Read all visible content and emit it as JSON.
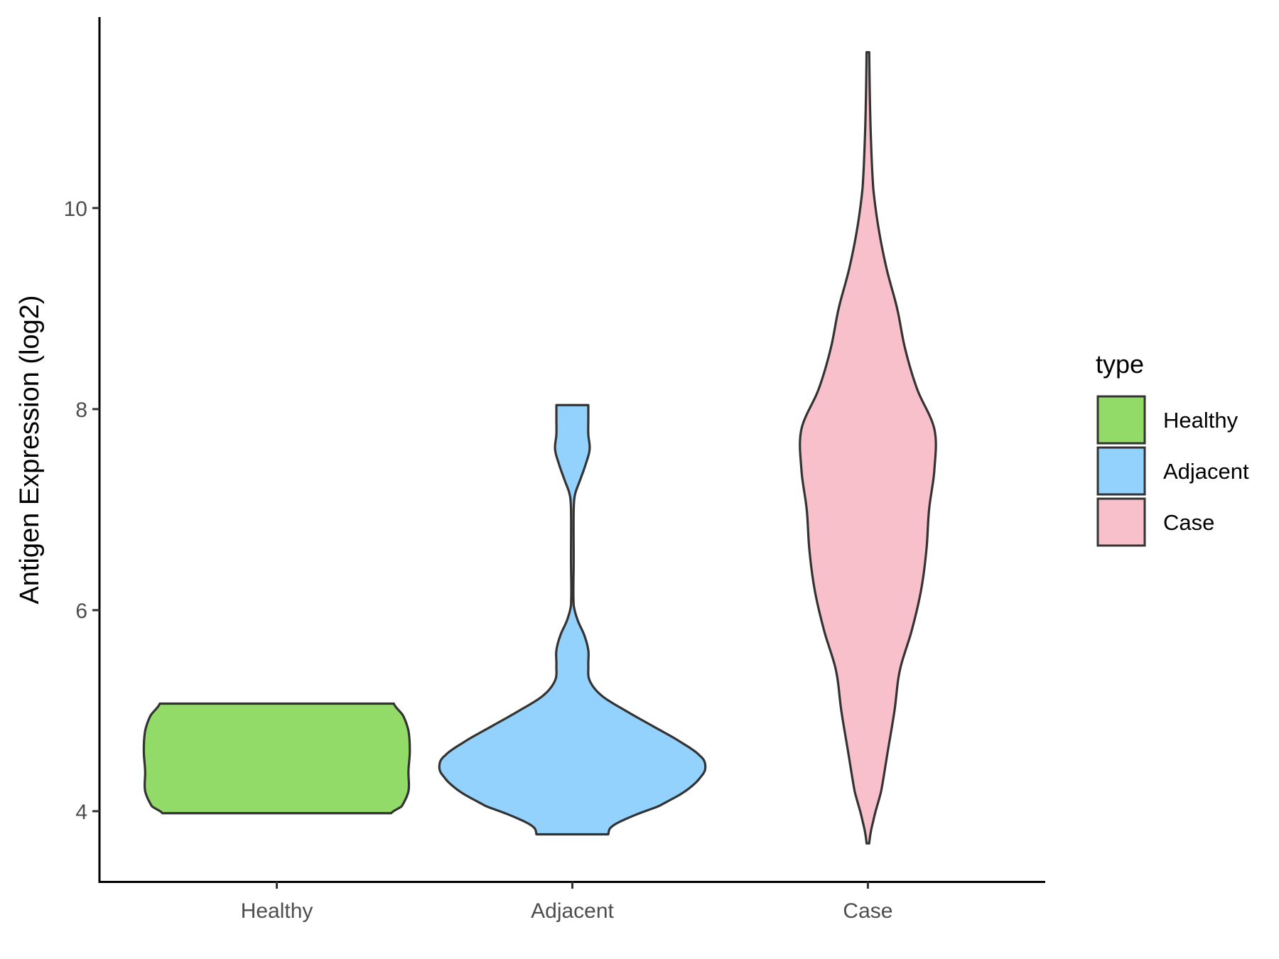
{
  "chart_data": {
    "type": "violin",
    "xlabel": "",
    "ylabel": "Antigen Expression (log2)",
    "ylim": [
      3.3,
      11.9
    ],
    "y_ticks": [
      4,
      6,
      8,
      10
    ],
    "categories": [
      "Healthy",
      "Adjacent",
      "Case"
    ],
    "grid": false,
    "legend": {
      "title": "type",
      "position": "right",
      "entries": [
        {
          "label": "Healthy",
          "color": "#93db69"
        },
        {
          "label": "Adjacent",
          "color": "#93d2fd"
        },
        {
          "label": "Case",
          "color": "#f7c0cb"
        }
      ]
    },
    "series": [
      {
        "category": "Healthy",
        "color": "#93db69",
        "min": 3.98,
        "max": 5.07,
        "density_profile": [
          [
            3.98,
            0.86
          ],
          [
            4.05,
            0.94
          ],
          [
            4.2,
            0.99
          ],
          [
            4.4,
            0.99
          ],
          [
            4.6,
            1.0
          ],
          [
            4.8,
            0.99
          ],
          [
            4.95,
            0.95
          ],
          [
            5.07,
            0.88
          ]
        ]
      },
      {
        "category": "Adjacent",
        "color": "#93d2fd",
        "min": 3.77,
        "max": 8.04,
        "density_profile": [
          [
            3.77,
            0.27
          ],
          [
            3.85,
            0.3
          ],
          [
            3.95,
            0.45
          ],
          [
            4.05,
            0.65
          ],
          [
            4.2,
            0.85
          ],
          [
            4.35,
            0.97
          ],
          [
            4.45,
            1.0
          ],
          [
            4.55,
            0.96
          ],
          [
            4.7,
            0.8
          ],
          [
            4.85,
            0.6
          ],
          [
            5.0,
            0.4
          ],
          [
            5.15,
            0.22
          ],
          [
            5.3,
            0.13
          ],
          [
            5.45,
            0.12
          ],
          [
            5.6,
            0.12
          ],
          [
            5.75,
            0.09
          ],
          [
            5.9,
            0.04
          ],
          [
            6.05,
            0.01
          ],
          [
            6.5,
            0.01
          ],
          [
            7.0,
            0.01
          ],
          [
            7.15,
            0.02
          ],
          [
            7.3,
            0.06
          ],
          [
            7.45,
            0.1
          ],
          [
            7.6,
            0.13
          ],
          [
            7.75,
            0.12
          ],
          [
            7.9,
            0.12
          ],
          [
            8.04,
            0.12
          ]
        ]
      },
      {
        "category": "Case",
        "color": "#f7c0cb",
        "min": 3.68,
        "max": 11.55,
        "density_profile": [
          [
            3.68,
            0.01
          ],
          [
            3.9,
            0.04
          ],
          [
            4.2,
            0.1
          ],
          [
            4.6,
            0.15
          ],
          [
            5.0,
            0.2
          ],
          [
            5.4,
            0.24
          ],
          [
            5.8,
            0.33
          ],
          [
            6.2,
            0.4
          ],
          [
            6.6,
            0.44
          ],
          [
            7.0,
            0.46
          ],
          [
            7.4,
            0.5
          ],
          [
            7.8,
            0.5
          ],
          [
            8.2,
            0.37
          ],
          [
            8.6,
            0.28
          ],
          [
            9.0,
            0.22
          ],
          [
            9.4,
            0.14
          ],
          [
            9.8,
            0.08
          ],
          [
            10.2,
            0.04
          ],
          [
            10.8,
            0.02
          ],
          [
            11.55,
            0.01
          ]
        ]
      }
    ]
  }
}
